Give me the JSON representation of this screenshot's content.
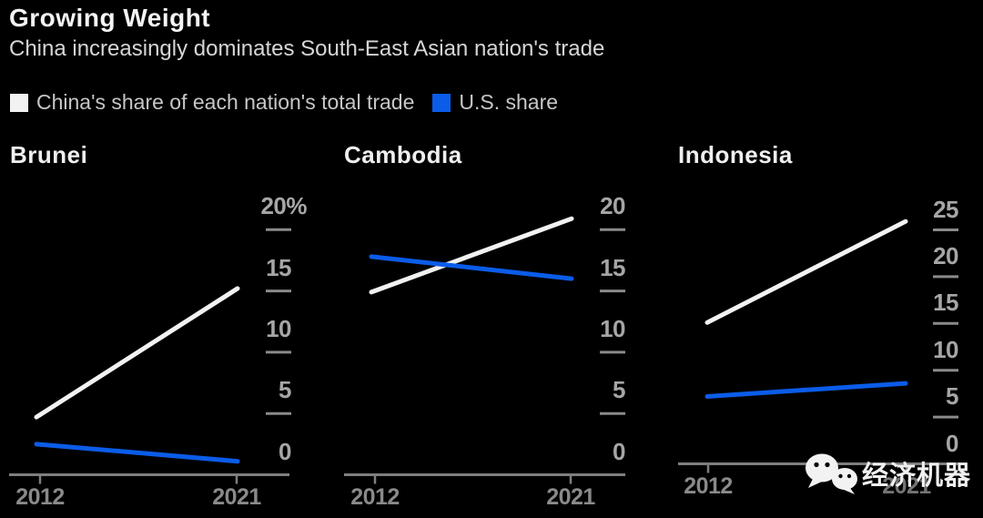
{
  "header": {
    "title": "Growing Weight",
    "subtitle": "China increasingly dominates South-East Asian nation's trade"
  },
  "legend": {
    "items": [
      {
        "label": "China's share of each nation's total trade",
        "color": "#f2f2f2"
      },
      {
        "label": "U.S. share",
        "color": "#0b5ce8"
      }
    ]
  },
  "colors": {
    "background": "#000000",
    "china_line": "#f2f2f2",
    "us_line": "#0b5ce8",
    "axis": "#7f7f7f",
    "y_tick_label": "#a6a6a6",
    "x_tick_label": "#8a8a8a"
  },
  "watermark": {
    "icon": "wechat-icon",
    "text": "经济机器"
  },
  "chart_data": [
    {
      "type": "line",
      "title": "Brunei",
      "x": [
        "2012",
        "2021"
      ],
      "ylim": [
        0,
        20
      ],
      "grid": false,
      "y_axis_position": "right",
      "yticks": [
        {
          "value": 20,
          "label": "20%"
        },
        {
          "value": 15,
          "label": "15"
        },
        {
          "value": 10,
          "label": "10"
        },
        {
          "value": 5,
          "label": "5"
        },
        {
          "value": 0,
          "label": "0"
        }
      ],
      "series": [
        {
          "name": "China's share of each nation's total trade",
          "color": "#f2f2f2",
          "values": [
            4.7,
            15.2
          ]
        },
        {
          "name": "U.S. share",
          "color": "#0b5ce8",
          "values": [
            2.5,
            1.1
          ]
        }
      ]
    },
    {
      "type": "line",
      "title": "Cambodia",
      "x": [
        "2012",
        "2021"
      ],
      "ylim": [
        0,
        20
      ],
      "grid": false,
      "y_axis_position": "right",
      "yticks": [
        {
          "value": 20,
          "label": "20"
        },
        {
          "value": 15,
          "label": "15"
        },
        {
          "value": 10,
          "label": "10"
        },
        {
          "value": 5,
          "label": "5"
        },
        {
          "value": 0,
          "label": "0"
        }
      ],
      "series": [
        {
          "name": "China's share of each nation's total trade",
          "color": "#f2f2f2",
          "values": [
            14.9,
            20.9
          ]
        },
        {
          "name": "U.S. share",
          "color": "#0b5ce8",
          "values": [
            17.8,
            16.0
          ]
        }
      ]
    },
    {
      "type": "line",
      "title": "Indonesia",
      "x": [
        "2012",
        "2021"
      ],
      "ylim": [
        0,
        25
      ],
      "grid": false,
      "y_axis_position": "right",
      "yticks": [
        {
          "value": 25,
          "label": "25"
        },
        {
          "value": 20,
          "label": "20"
        },
        {
          "value": 15,
          "label": "15"
        },
        {
          "value": 10,
          "label": "10"
        },
        {
          "value": 5,
          "label": "5"
        },
        {
          "value": 0,
          "label": "0"
        }
      ],
      "series": [
        {
          "name": "China's share of each nation's total trade",
          "color": "#f2f2f2",
          "values": [
            15.1,
            25.9
          ]
        },
        {
          "name": "U.S. share",
          "color": "#0b5ce8",
          "values": [
            7.2,
            8.6
          ]
        }
      ]
    }
  ]
}
